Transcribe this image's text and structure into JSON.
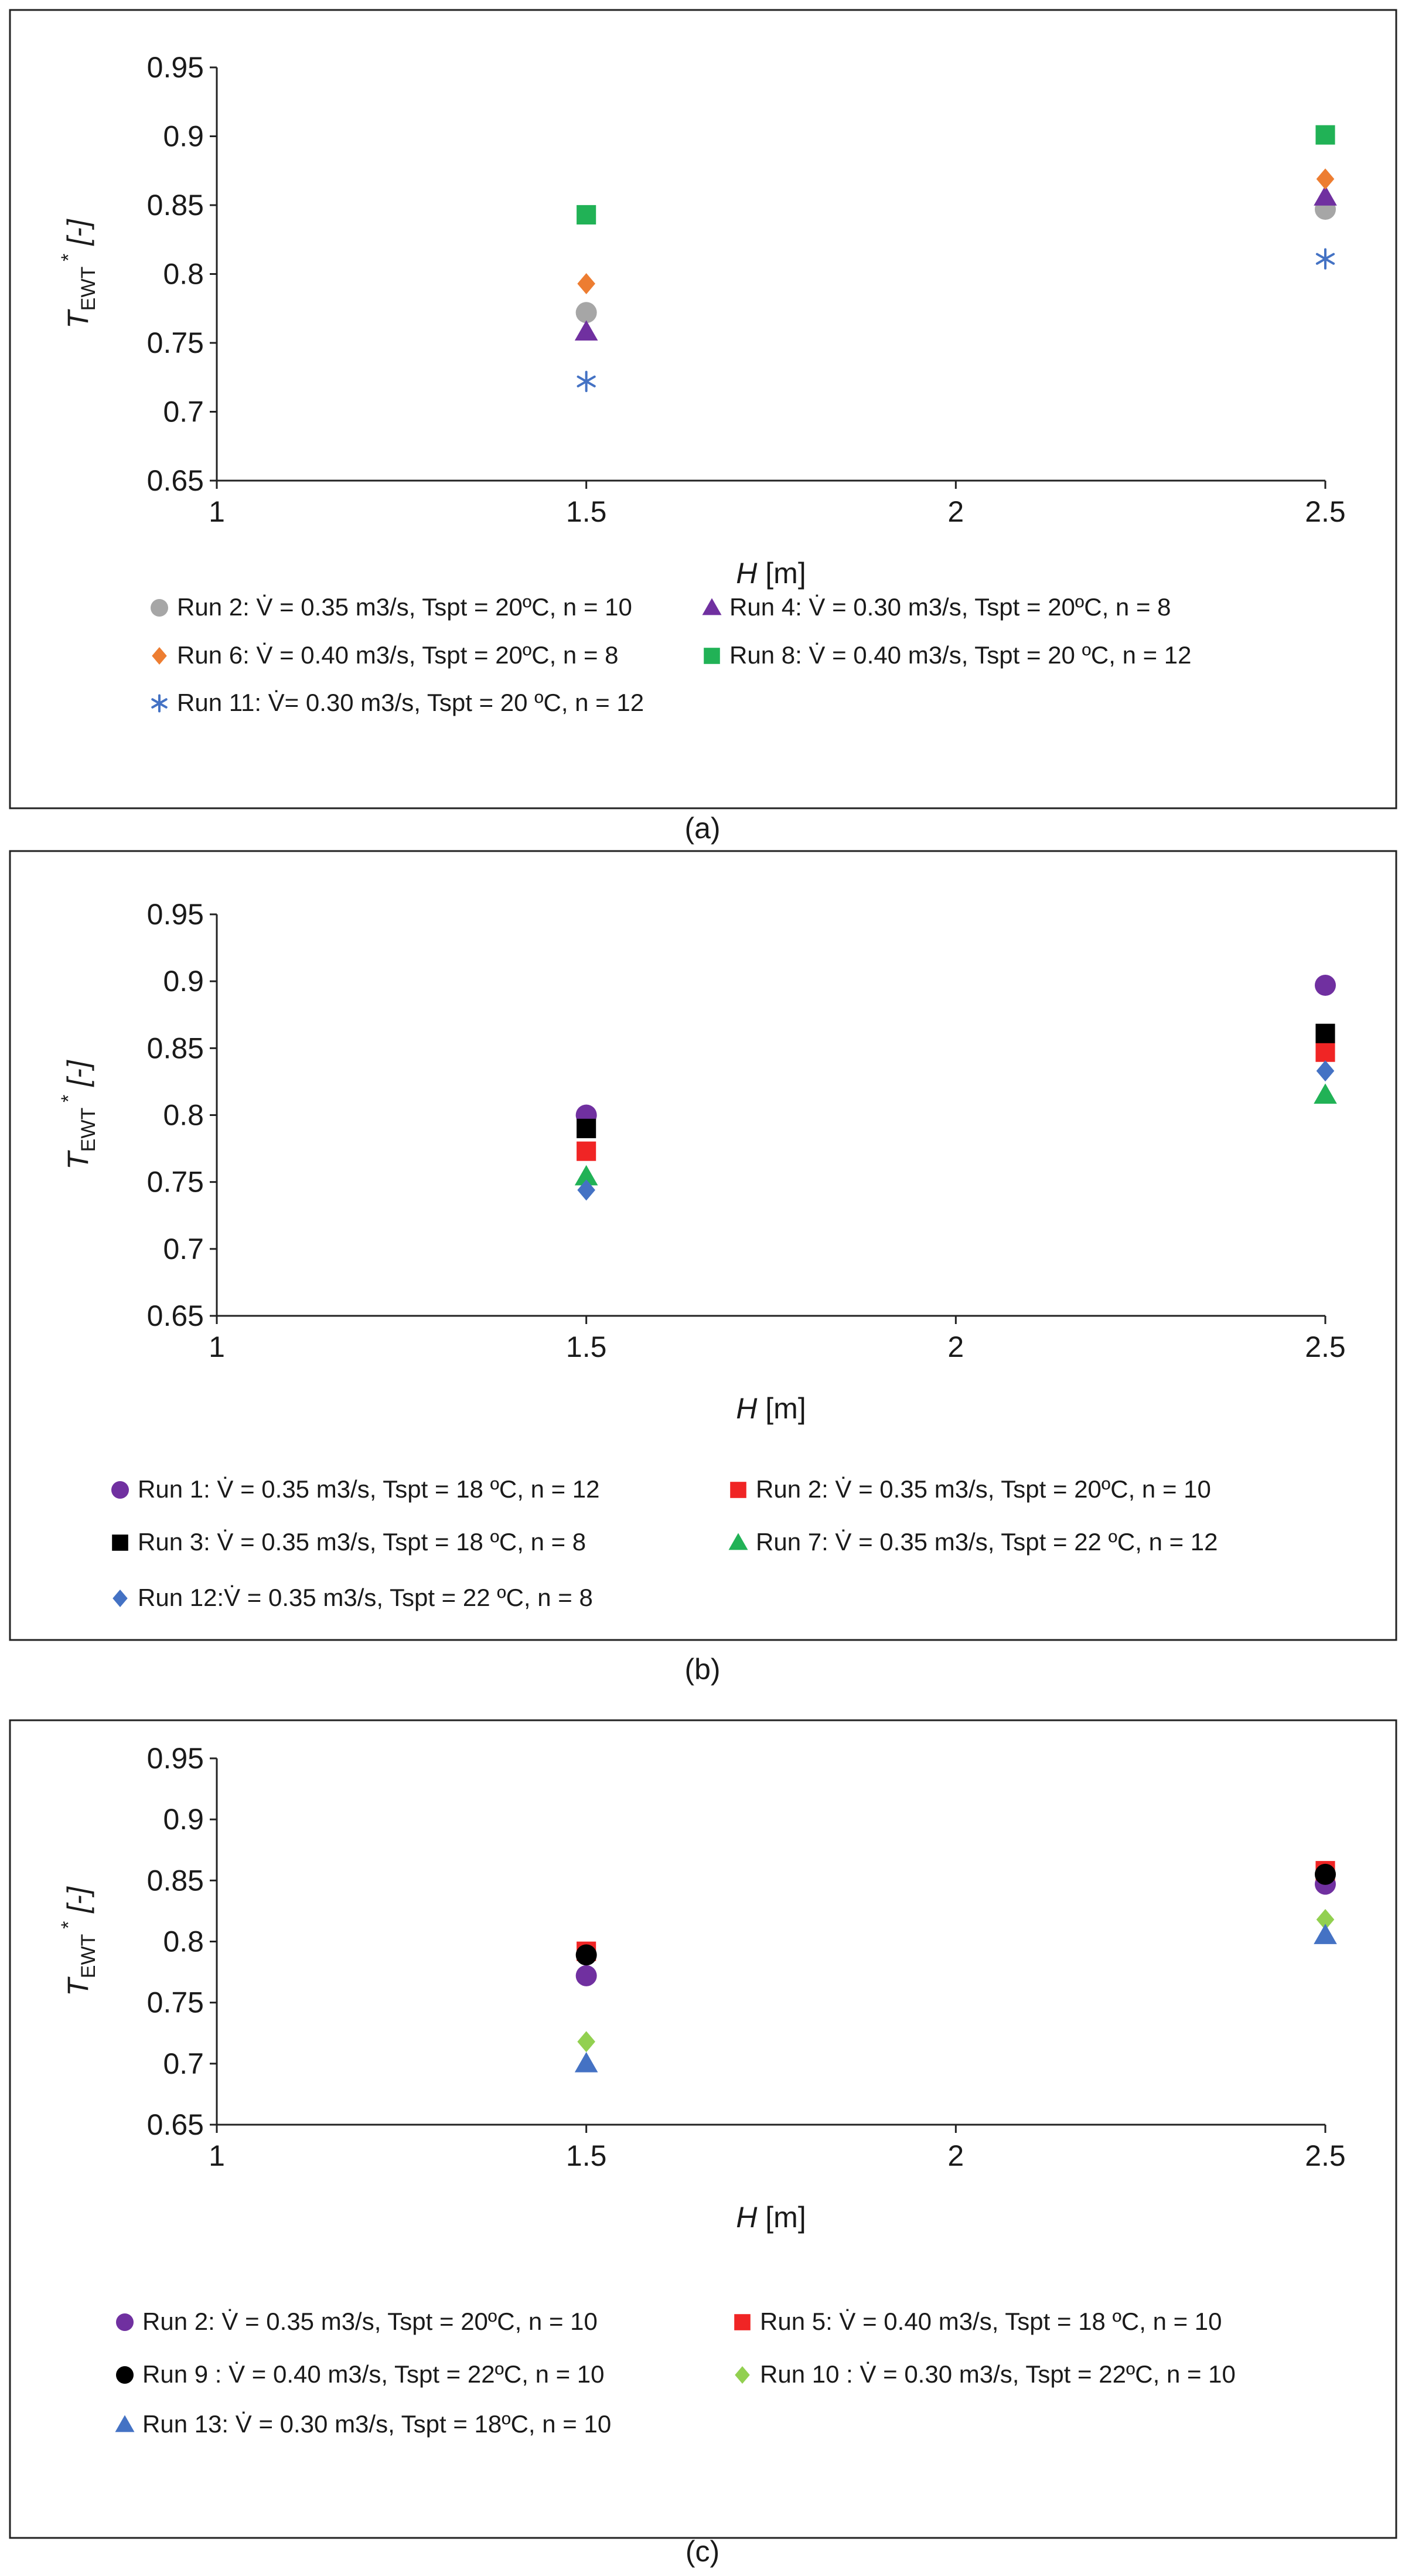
{
  "chart_data": [
    {
      "panel": "a",
      "type": "scatter",
      "caption": "(a)",
      "xlabel_italic": "H",
      "xlabel_unit": "[m]",
      "ylabel_main": "T",
      "ylabel_sub": "EWT",
      "ylabel_sup": "*",
      "ylabel_unit": "[-]",
      "xlim": [
        1,
        2.5
      ],
      "ylim": [
        0.65,
        0.95
      ],
      "xticks": [
        1,
        1.5,
        2,
        2.5
      ],
      "yticks": [
        0.65,
        0.7,
        0.75,
        0.8,
        0.85,
        0.9,
        0.95
      ],
      "xtick_labels": [
        "1",
        "1.5",
        "2",
        "2.5"
      ],
      "ytick_labels": [
        "0.65",
        "0.7",
        "0.75",
        "0.8",
        "0.85",
        "0.9",
        "0.95"
      ],
      "legend_placement": "bottom",
      "series": [
        {
          "name": "Run 2: V̇ = 0.35 m3/s, Tspt = 20ºC, n = 10",
          "marker": "circle",
          "color": "#a6a6a6",
          "x": [
            1.5,
            2.5
          ],
          "y": [
            0.772,
            0.847
          ]
        },
        {
          "name": "Run 4:  V̇ = 0.30 m3/s, Tspt = 20ºC,  n = 8",
          "marker": "triangle",
          "color": "#7030a0",
          "x": [
            1.5,
            2.5
          ],
          "y": [
            0.758,
            0.856
          ]
        },
        {
          "name": "Run 6:  V̇ = 0.40 m3/s, Tspt = 20ºC, n = 8",
          "marker": "diamond",
          "color": "#ed7d31",
          "x": [
            1.5,
            2.5
          ],
          "y": [
            0.793,
            0.869
          ]
        },
        {
          "name": "Run 8:  V̇ = 0.40 m3/s, Tspt = 20 ºC, n = 12",
          "marker": "square",
          "color": "#21b256",
          "x": [
            1.5,
            2.5
          ],
          "y": [
            0.843,
            0.901
          ]
        },
        {
          "name": "Run 11:  V̇= 0.30 m3/s, Tspt = 20 ºC, n = 12",
          "marker": "star",
          "color": "#4472c4",
          "x": [
            1.5,
            2.5
          ],
          "y": [
            0.722,
            0.811
          ]
        }
      ]
    },
    {
      "panel": "b",
      "type": "scatter",
      "caption": "(b)",
      "xlabel_italic": "H",
      "xlabel_unit": "[m]",
      "ylabel_main": "T",
      "ylabel_sub": "EWT",
      "ylabel_sup": "*",
      "ylabel_unit": "[-]",
      "xlim": [
        1,
        2.5
      ],
      "ylim": [
        0.65,
        0.95
      ],
      "xticks": [
        1,
        1.5,
        2,
        2.5
      ],
      "yticks": [
        0.65,
        0.7,
        0.75,
        0.8,
        0.85,
        0.9,
        0.95
      ],
      "xtick_labels": [
        "1",
        "1.5",
        "2",
        "2.5"
      ],
      "ytick_labels": [
        "0.65",
        "0.7",
        "0.75",
        "0.8",
        "0.85",
        "0.9",
        "0.95"
      ],
      "legend_placement": "bottom",
      "series": [
        {
          "name": "Run 1: V̇ = 0.35 m3/s, Tspt = 18 ºC, n = 12",
          "marker": "circle",
          "color": "#7030a0",
          "x": [
            1.5,
            2.5
          ],
          "y": [
            0.8,
            0.897
          ]
        },
        {
          "name": "Run 2: V̇ = 0.35 m3/s, Tspt = 20ºC, n = 10",
          "marker": "square",
          "color": "#f02525",
          "x": [
            1.5,
            2.5
          ],
          "y": [
            0.773,
            0.847
          ]
        },
        {
          "name": "Run 3: V̇ = 0.35 m3/s, Tspt = 18 ºC, n = 8",
          "marker": "square",
          "color": "#000000",
          "x": [
            1.5,
            2.5
          ],
          "y": [
            0.79,
            0.861
          ]
        },
        {
          "name": "Run 7: V̇ = 0.35 m3/s, Tspt = 22 ºC, n = 12",
          "marker": "triangle",
          "color": "#21b256",
          "x": [
            1.5,
            2.5
          ],
          "y": [
            0.754,
            0.815
          ]
        },
        {
          "name": "Run 12:V̇ = 0.35 m3/s, Tspt = 22 ºC, n = 8",
          "marker": "diamond",
          "color": "#4472c4",
          "x": [
            1.5,
            2.5
          ],
          "y": [
            0.744,
            0.833
          ]
        }
      ]
    },
    {
      "panel": "c",
      "type": "scatter",
      "caption": "(c)",
      "xlabel_italic": "H",
      "xlabel_unit": "[m]",
      "ylabel_main": "T",
      "ylabel_sub": "EWT",
      "ylabel_sup": "*",
      "ylabel_unit": "[-]",
      "xlim": [
        1,
        2.5
      ],
      "ylim": [
        0.65,
        0.95
      ],
      "xticks": [
        1,
        1.5,
        2,
        2.5
      ],
      "yticks": [
        0.65,
        0.7,
        0.75,
        0.8,
        0.85,
        0.9,
        0.95
      ],
      "xtick_labels": [
        "1",
        "1.5",
        "2",
        "2.5"
      ],
      "ytick_labels": [
        "0.65",
        "0.7",
        "0.75",
        "0.8",
        "0.85",
        "0.9",
        "0.95"
      ],
      "legend_placement": "bottom",
      "series": [
        {
          "name": "Run 2: V̇ = 0.35 m3/s, Tspt = 20ºC, n = 10",
          "marker": "circle",
          "color": "#7030a0",
          "x": [
            1.5,
            2.5
          ],
          "y": [
            0.772,
            0.847
          ]
        },
        {
          "name": "Run 5: V̇ = 0.40 m3/s, Tspt = 18 ºC, n = 10",
          "marker": "square",
          "color": "#f02525",
          "x": [
            1.5,
            2.5
          ],
          "y": [
            0.792,
            0.858
          ]
        },
        {
          "name": "Run 9 : V̇ = 0.40 m3/s, Tspt = 22ºC, n = 10",
          "marker": "circle",
          "color": "#000000",
          "x": [
            1.5,
            2.5
          ],
          "y": [
            0.789,
            0.855
          ]
        },
        {
          "name": "Run 10 : V̇ = 0.30 m3/s, Tspt = 22ºC, n = 10",
          "marker": "diamond",
          "color": "#92d050",
          "x": [
            1.5,
            2.5
          ],
          "y": [
            0.718,
            0.818
          ]
        },
        {
          "name": "Run 13: V̇ = 0.30 m3/s, Tspt = 18ºC, n = 10",
          "marker": "triangle",
          "color": "#4472c4",
          "x": [
            1.5,
            2.5
          ],
          "y": [
            0.7,
            0.805
          ]
        }
      ]
    }
  ]
}
